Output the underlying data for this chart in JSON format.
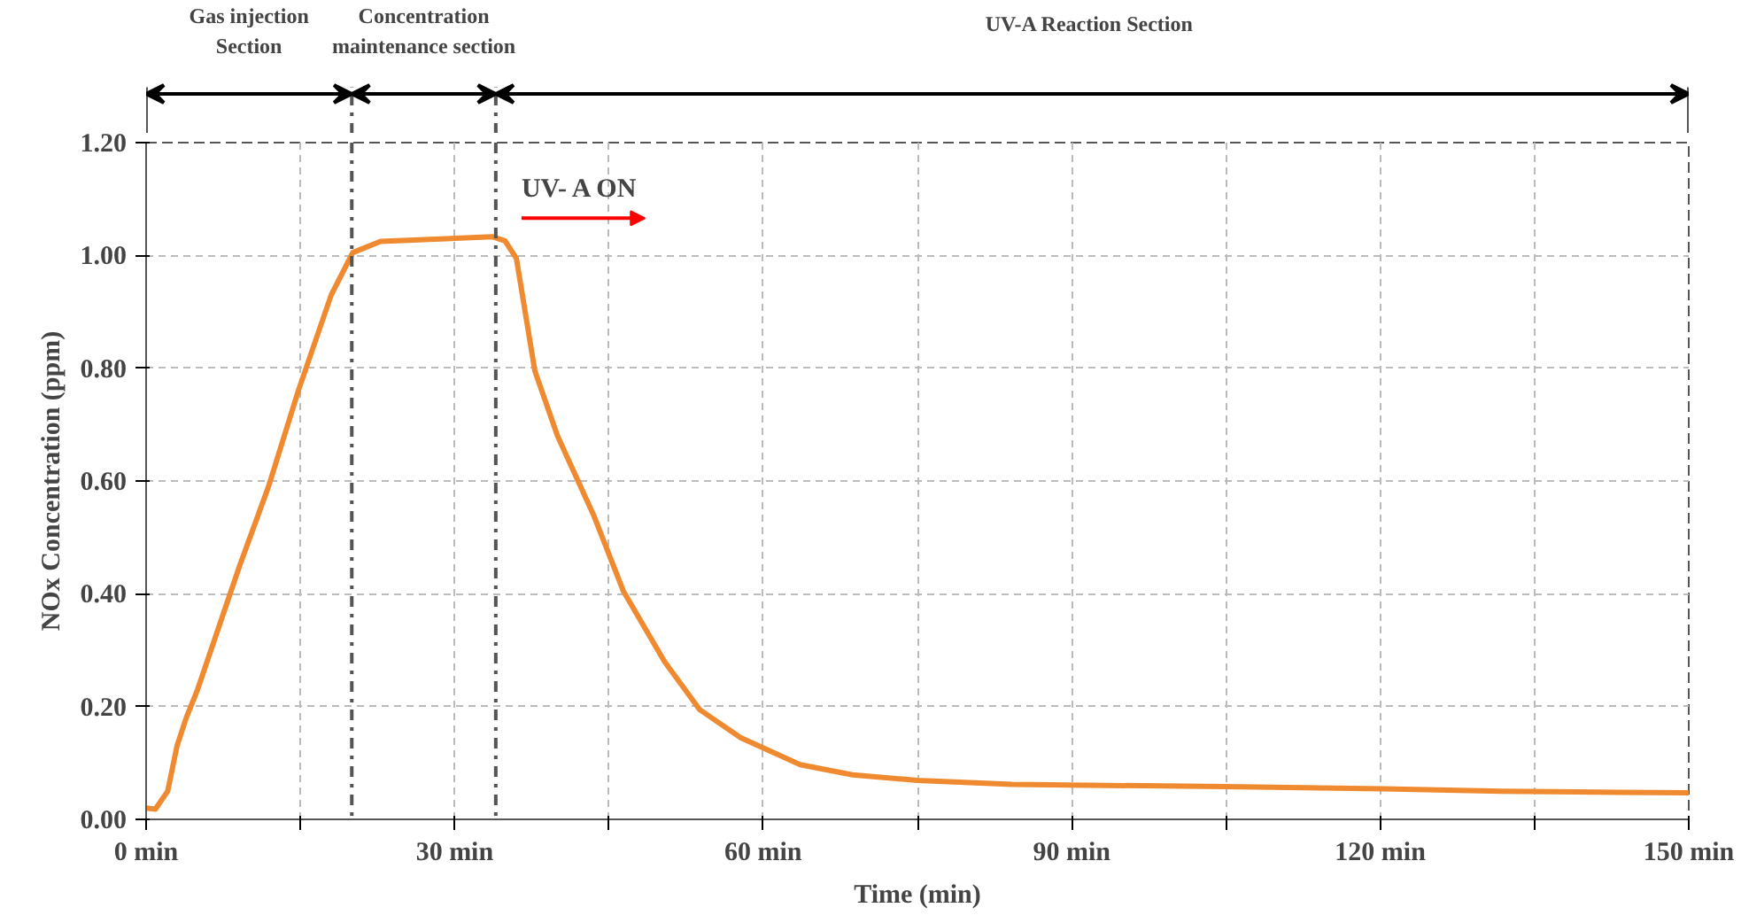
{
  "chart_data": {
    "type": "line",
    "xlabel": "Time (min)",
    "ylabel": "NOx Concentration (ppm)",
    "xlim": [
      0,
      150
    ],
    "ylim": [
      0,
      1.2
    ],
    "xticks": [
      {
        "value": 0,
        "label": "0 min"
      },
      {
        "value": 15,
        "label": null
      },
      {
        "value": 30,
        "label": "30 min"
      },
      {
        "value": 45,
        "label": null
      },
      {
        "value": 60,
        "label": "60 min"
      },
      {
        "value": 75,
        "label": null
      },
      {
        "value": 90,
        "label": "90 min"
      },
      {
        "value": 105,
        "label": null
      },
      {
        "value": 120,
        "label": "120 min"
      },
      {
        "value": 135,
        "label": null
      },
      {
        "value": 150,
        "label": "150 min"
      }
    ],
    "yticks": [
      {
        "value": 0,
        "label": "0.00"
      },
      {
        "value": 0.2,
        "label": "0.20"
      },
      {
        "value": 0.4,
        "label": "0.40"
      },
      {
        "value": 0.6,
        "label": "0.60"
      },
      {
        "value": 0.8,
        "label": "0.80"
      },
      {
        "value": 1.0,
        "label": "1.00"
      },
      {
        "value": 1.2,
        "label": "1.20"
      }
    ],
    "grid": true,
    "marker": "none",
    "line_style": "solid",
    "series": [
      {
        "color": "#f08a30",
        "x": [
          0,
          0.9,
          2.1,
          3.0,
          3.9,
          5.0,
          9.1,
          11.9,
          14.8,
          18.0,
          20.1,
          22.8,
          33.7,
          34.9,
          36.0,
          37.8,
          40.0,
          43.5,
          46.4,
          50.4,
          53.8,
          57.8,
          63.6,
          68.7,
          75.0,
          84.2,
          104.9,
          120.3,
          131.8,
          143.3,
          150
        ],
        "values": [
          0.02,
          0.018,
          0.05,
          0.13,
          0.18,
          0.23,
          0.45,
          0.59,
          0.76,
          0.93,
          1.005,
          1.025,
          1.033,
          1.026,
          0.995,
          0.795,
          0.68,
          0.54,
          0.405,
          0.28,
          0.195,
          0.145,
          0.097,
          0.079,
          0.069,
          0.062,
          0.058,
          0.054,
          0.05,
          0.048,
          0.047
        ]
      }
    ],
    "ref_lines": [
      {
        "axis": "x",
        "value": 20,
        "color": "#555555",
        "line_style": "dashdot"
      },
      {
        "axis": "x",
        "value": 34,
        "color": "#555555",
        "line_style": "dashdot"
      }
    ],
    "annotations": [
      "Gas injection\nSection",
      "Concentration\nmaintenance section",
      "UV-A Reaction  Section",
      "UV- A ON"
    ]
  }
}
